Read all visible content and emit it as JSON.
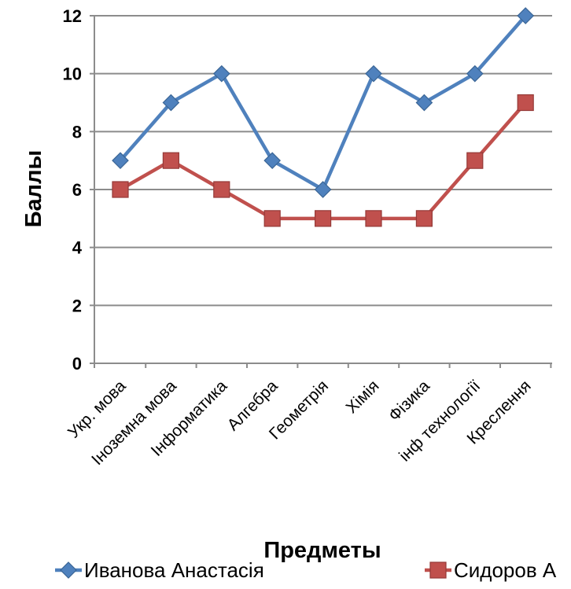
{
  "chart_data": {
    "type": "line",
    "title": "",
    "xlabel": "Предметы",
    "ylabel": "Баллы",
    "ylim": [
      0,
      12
    ],
    "yticks": [
      0,
      2,
      4,
      6,
      8,
      10,
      12
    ],
    "grid": true,
    "legend_position": "bottom",
    "categories": [
      "Укр. мова",
      "Іноземна  мова",
      "Інформатика",
      "Алгебра",
      "Геометрія",
      "Хімія",
      "Фізика",
      "інф технології",
      "Креслення"
    ],
    "series": [
      {
        "name": "Иванова Анастасія",
        "marker": "diamond",
        "color": "#4f81bd",
        "values": [
          7,
          9,
          10,
          7,
          6,
          10,
          9,
          10,
          12
        ]
      },
      {
        "name": "Сидоров А",
        "marker": "square",
        "color": "#c0504d",
        "values": [
          6,
          7,
          6,
          5,
          5,
          5,
          5,
          7,
          9
        ]
      }
    ]
  }
}
